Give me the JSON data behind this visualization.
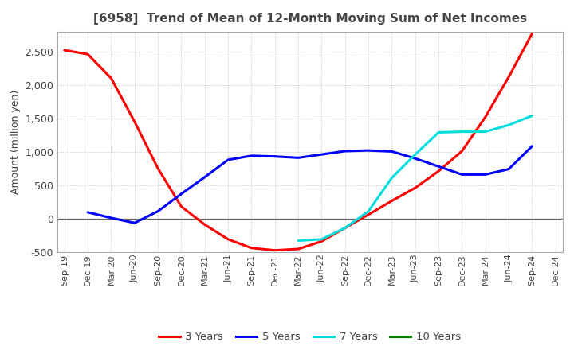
{
  "title": "[6958]  Trend of Mean of 12-Month Moving Sum of Net Incomes",
  "ylabel": "Amount (million yen)",
  "ylim": [
    -500,
    2800
  ],
  "yticks": [
    -500,
    0,
    500,
    1000,
    1500,
    2000,
    2500
  ],
  "background_color": "#ffffff",
  "grid_color": "#aaaaaa",
  "series": {
    "3 Years": {
      "color": "#ff0000",
      "x": [
        0,
        1,
        2,
        3,
        4,
        5,
        6,
        7,
        8,
        9,
        10,
        11,
        12,
        13,
        14,
        15,
        16,
        17,
        18,
        19,
        20
      ],
      "y": [
        2520,
        2460,
        2100,
        1450,
        750,
        180,
        -90,
        -310,
        -440,
        -475,
        -455,
        -340,
        -140,
        60,
        265,
        460,
        710,
        1010,
        1520,
        2120,
        2770
      ]
    },
    "5 Years": {
      "color": "#0000ff",
      "x": [
        1,
        2,
        3,
        4,
        5,
        6,
        7,
        8,
        9,
        10,
        11,
        12,
        13,
        14,
        15,
        16,
        17,
        18,
        19,
        20
      ],
      "y": [
        95,
        10,
        -65,
        110,
        370,
        620,
        880,
        940,
        930,
        910,
        960,
        1010,
        1020,
        1005,
        900,
        780,
        660,
        660,
        740,
        1085
      ]
    },
    "7 Years": {
      "color": "#00dddd",
      "x": [
        10,
        11,
        12,
        13,
        14,
        15,
        16,
        17,
        18,
        19,
        20
      ],
      "y": [
        -330,
        -310,
        -140,
        110,
        610,
        960,
        1290,
        1300,
        1300,
        1400,
        1540
      ]
    },
    "10 Years": {
      "color": "#008000",
      "x": [],
      "y": []
    }
  },
  "x_labels": [
    "Sep-19",
    "Dec-19",
    "Mar-20",
    "Jun-20",
    "Sep-20",
    "Dec-20",
    "Mar-21",
    "Jun-21",
    "Sep-21",
    "Dec-21",
    "Mar-22",
    "Jun-22",
    "Sep-22",
    "Dec-22",
    "Mar-23",
    "Jun-23",
    "Sep-23",
    "Dec-23",
    "Mar-24",
    "Jun-24",
    "Sep-24",
    "Dec-24"
  ],
  "x_ticks": [
    0,
    1,
    2,
    3,
    4,
    5,
    6,
    7,
    8,
    9,
    10,
    11,
    12,
    13,
    14,
    15,
    16,
    17,
    18,
    19,
    20,
    21
  ],
  "linewidth": 2.2,
  "title_color": "#444444",
  "tick_color": "#444444",
  "label_color": "#444444"
}
